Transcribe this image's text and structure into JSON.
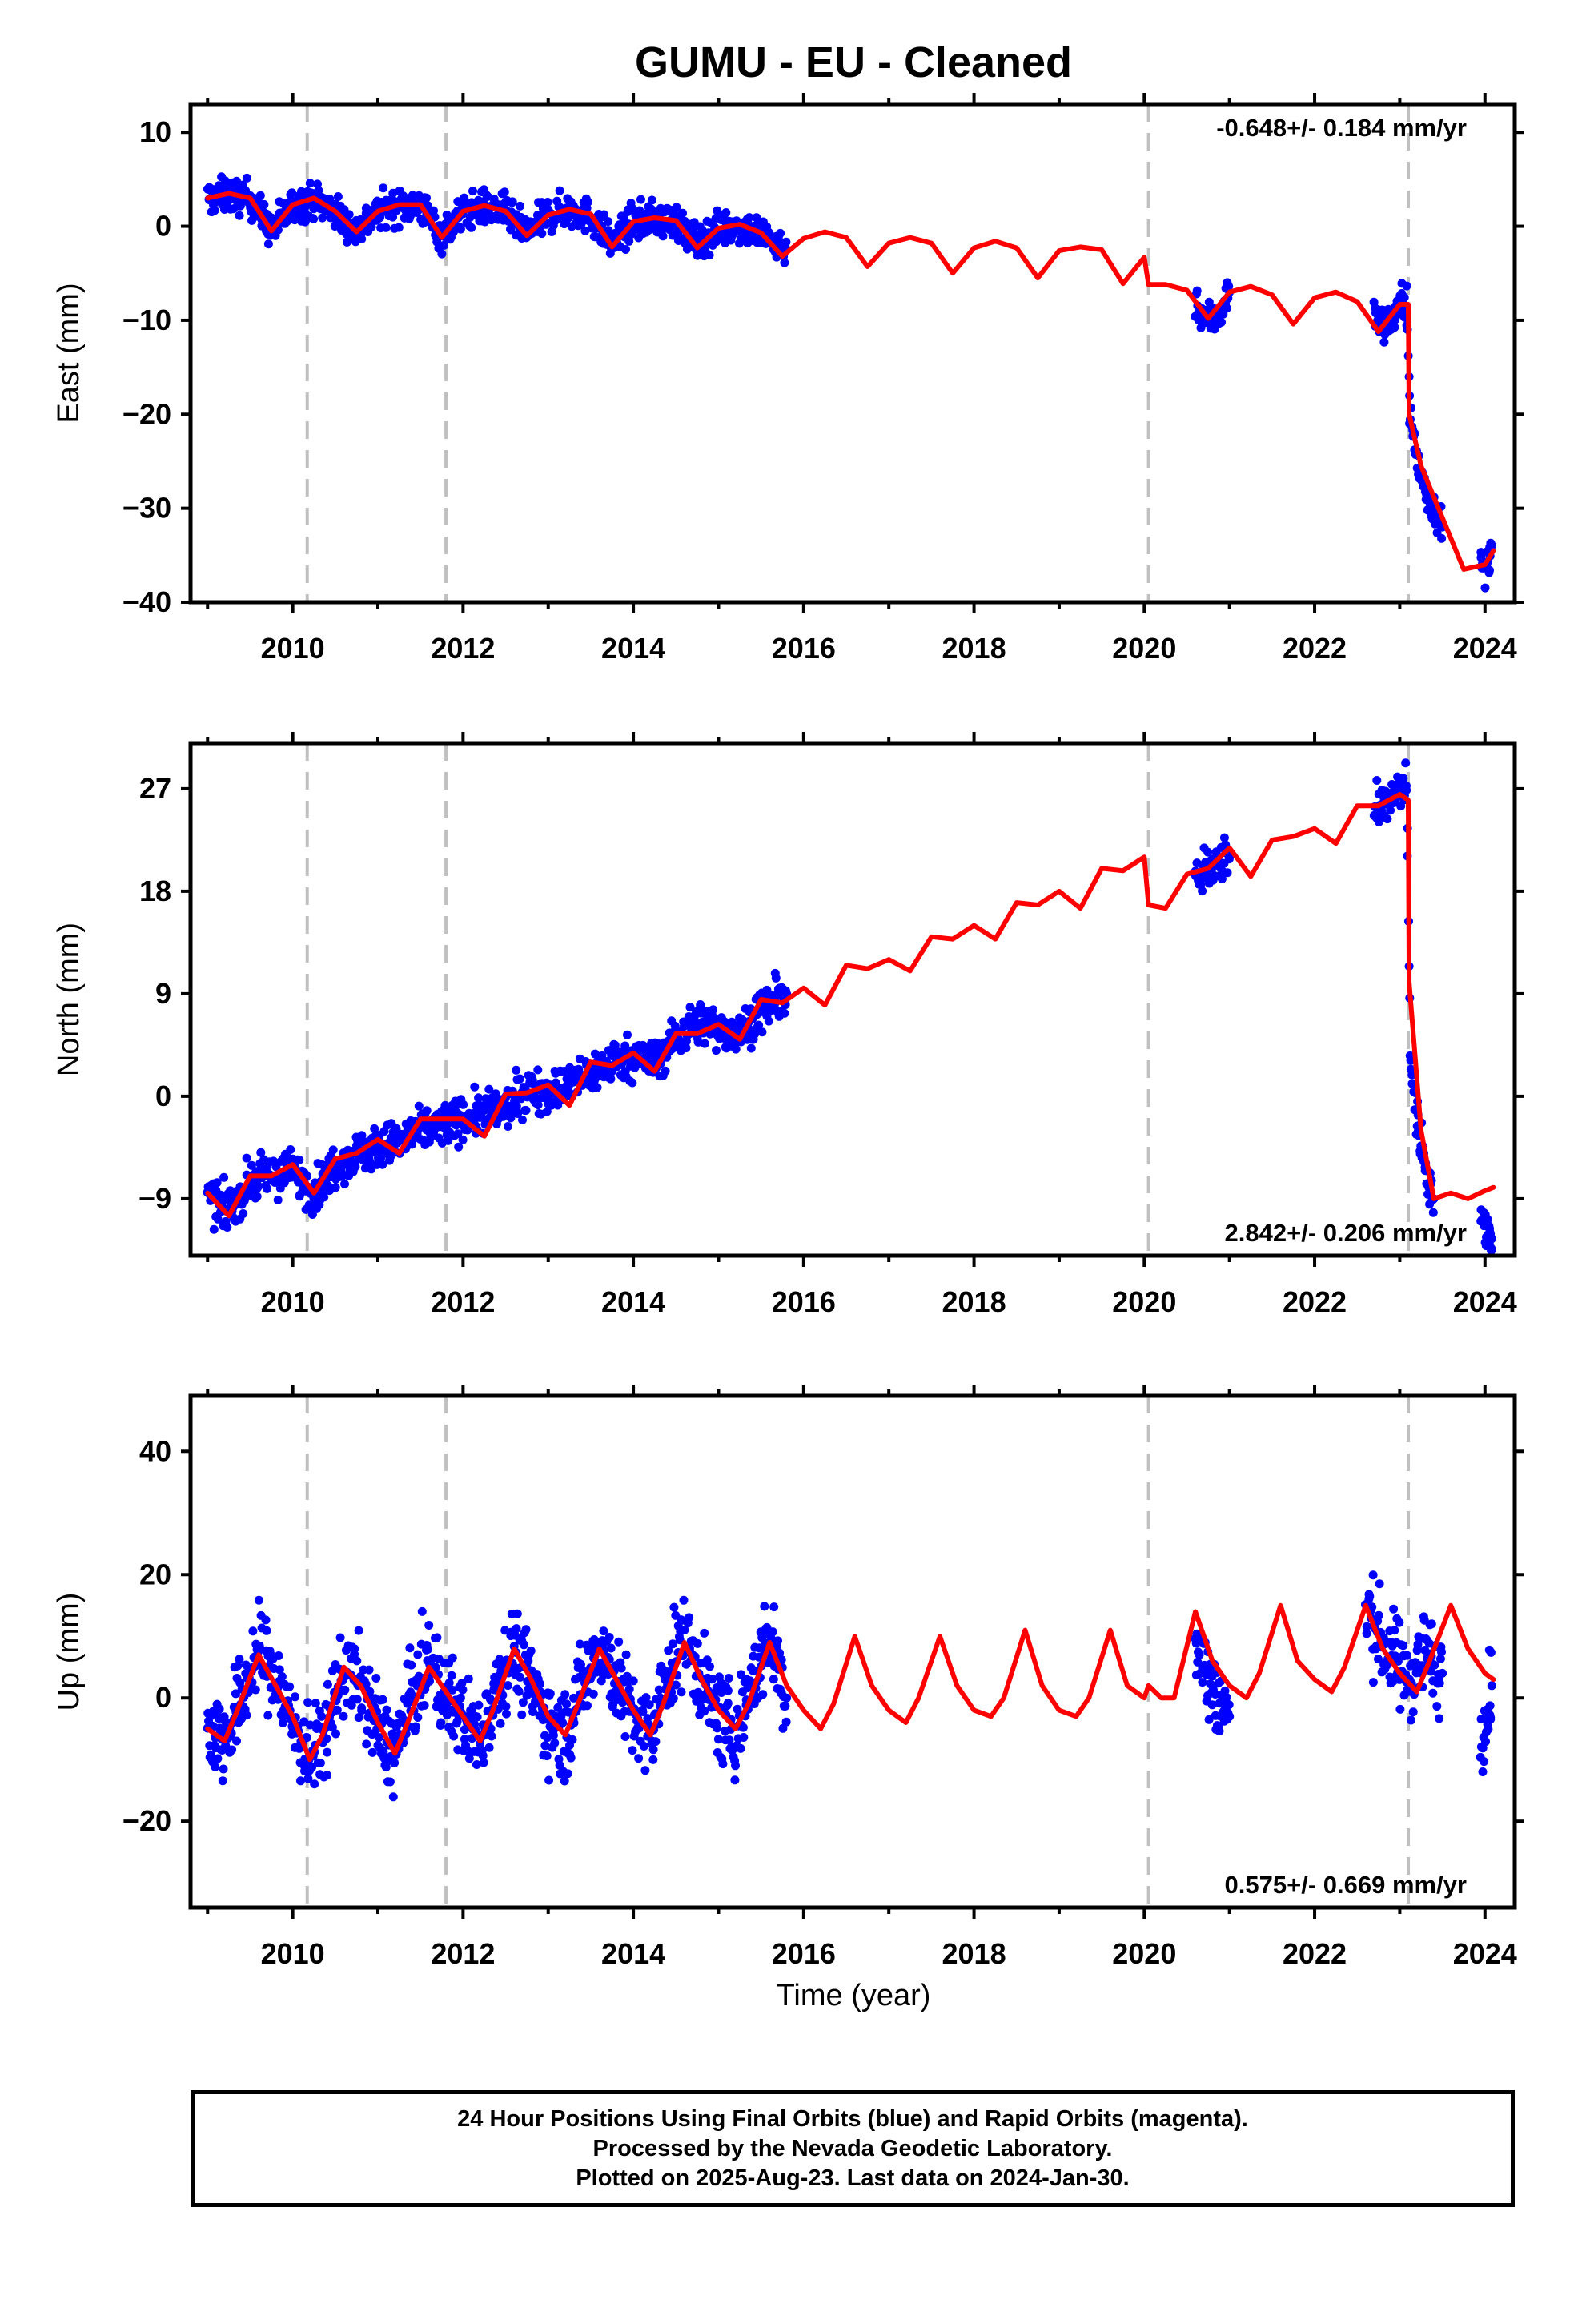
{
  "title": "GUMU  - EU - Cleaned",
  "xlabel": "Time (year)",
  "footer": {
    "line1": "24 Hour Positions Using Final Orbits (blue) and Rapid Orbits (magenta).",
    "line2": "Processed by the Nevada Geodetic Laboratory.",
    "line3": "Plotted on 2025-Aug-23. Last data on 2024-Jan-30."
  },
  "colors": {
    "data": "#0000ff",
    "model": "#ff0000",
    "breaks": "#c0c0c0"
  },
  "chart_data": [
    {
      "type": "scatter",
      "component": "east",
      "ylabel": "East (mm)",
      "rate_label": "-0.648+/- 0.184 mm/yr",
      "xlim": [
        2008.8,
        2024.35
      ],
      "ylim": [
        -40,
        13
      ],
      "yticks": [
        10,
        0,
        -10,
        -20,
        -30,
        -40
      ],
      "xticks": [
        2010,
        2012,
        2014,
        2016,
        2018,
        2020,
        2022,
        2024
      ],
      "breaks": [
        2010.17,
        2011.8,
        2020.05,
        2023.1
      ],
      "series": [
        {
          "role": "data",
          "segments": [
            {
              "x": [
                2009.0,
                2009.25,
                2009.5,
                2009.75,
                2010.0,
                2010.25,
                2010.5,
                2010.75,
                2011.0,
                2011.25,
                2011.5,
                2011.75,
                2012.0,
                2012.25,
                2012.5,
                2012.75,
                2013.0,
                2013.25,
                2013.5,
                2013.75,
                2014.0,
                2014.25,
                2014.5,
                2014.75,
                2015.0,
                2015.25,
                2015.5,
                2015.8
              ],
              "y": [
                3,
                3.3,
                3,
                -0.5,
                2.2,
                2.8,
                1.5,
                -0.5,
                1.5,
                2.2,
                2.2,
                -1,
                1.5,
                2,
                1.5,
                -0.8,
                1.2,
                1.8,
                1,
                -1.8,
                0.5,
                0.8,
                0.5,
                -1.8,
                -0.3,
                0,
                -0.8,
                -2.5
              ]
            },
            {
              "x": [
                2020.6,
                2020.7,
                2020.8,
                2020.9,
                2021.0
              ],
              "y": [
                -8,
                -9.5,
                -10,
                -9,
                -7
              ]
            },
            {
              "x": [
                2022.7,
                2022.8,
                2022.9,
                2023.0,
                2023.08,
                2023.12,
                2023.2,
                2023.3,
                2023.4,
                2023.5
              ],
              "y": [
                -9,
                -10.5,
                -10,
                -8.5,
                -7.5,
                -20,
                -25,
                -28,
                -30,
                -32
              ]
            },
            {
              "x": [
                2023.95,
                2024.0,
                2024.05,
                2024.08
              ],
              "y": [
                -36,
                -37,
                -35,
                -34
              ]
            }
          ]
        },
        {
          "role": "model",
          "x": [
            2009.0,
            2009.25,
            2009.5,
            2009.75,
            2010.0,
            2010.25,
            2010.5,
            2010.75,
            2011.0,
            2011.25,
            2011.5,
            2011.75,
            2012.0,
            2012.25,
            2012.5,
            2012.75,
            2013.0,
            2013.25,
            2013.5,
            2013.75,
            2014.0,
            2014.25,
            2014.5,
            2014.75,
            2015.0,
            2015.25,
            2015.5,
            2015.75,
            2016.0,
            2016.25,
            2016.5,
            2016.75,
            2017.0,
            2017.25,
            2017.5,
            2017.75,
            2018.0,
            2018.25,
            2018.5,
            2018.75,
            2019.0,
            2019.25,
            2019.5,
            2019.75,
            2020.0,
            2020.05,
            2020.25,
            2020.5,
            2020.75,
            2021.0,
            2021.25,
            2021.5,
            2021.75,
            2022.0,
            2022.25,
            2022.5,
            2022.75,
            2023.0,
            2023.1,
            2023.11,
            2023.25,
            2023.5,
            2023.75,
            2024.0,
            2024.1
          ],
          "y": [
            3,
            3.5,
            3,
            -0.5,
            2.3,
            3,
            1.6,
            -0.6,
            1.6,
            2.3,
            2.3,
            -1.2,
            1.6,
            2.2,
            1.6,
            -1.0,
            1.2,
            1.8,
            1.3,
            -2.2,
            0.5,
            0.9,
            0.6,
            -2.3,
            -0.2,
            0.2,
            -0.7,
            -3.2,
            -1.3,
            -0.6,
            -1.2,
            -4.3,
            -1.8,
            -1.2,
            -1.8,
            -5.0,
            -2.3,
            -1.6,
            -2.3,
            -5.5,
            -2.6,
            -2.2,
            -2.5,
            -6.1,
            -3.3,
            -6.2,
            -6.2,
            -6.8,
            -9.8,
            -7.0,
            -6.4,
            -7.3,
            -10.4,
            -7.6,
            -7.0,
            -8.0,
            -11.2,
            -8.3,
            -8.3,
            -20.0,
            -25.5,
            -31.0,
            -36.5,
            -36.0,
            -34.5
          ]
        }
      ]
    },
    {
      "type": "scatter",
      "component": "north",
      "ylabel": "North (mm)",
      "rate_label": "2.842+/- 0.206 mm/yr",
      "xlim": [
        2008.8,
        2024.35
      ],
      "ylim": [
        -14,
        31
      ],
      "yticks": [
        27,
        18,
        9,
        0,
        -9
      ],
      "xticks": [
        2010,
        2012,
        2014,
        2016,
        2018,
        2020,
        2022,
        2024
      ],
      "breaks": [
        2010.17,
        2011.8,
        2020.05,
        2023.1
      ],
      "series": [
        {
          "role": "data",
          "segments": [
            {
              "x": [
                2009.0,
                2009.25,
                2009.5,
                2009.75,
                2010.0,
                2010.25,
                2010.5,
                2010.75,
                2011.0,
                2011.25,
                2011.5,
                2011.75,
                2012.0,
                2012.25,
                2012.5,
                2012.75,
                2013.0,
                2013.25,
                2013.5,
                2013.75,
                2014.0,
                2014.25,
                2014.5,
                2014.75,
                2015.0,
                2015.25,
                2015.5,
                2015.8
              ],
              "y": [
                -9,
                -10,
                -7.5,
                -7,
                -6.5,
                -8.5,
                -6,
                -5,
                -4.5,
                -4,
                -3,
                -2.5,
                -2,
                -1.5,
                -1,
                0.5,
                0.5,
                1,
                2,
                3,
                3.5,
                3,
                5,
                6.5,
                6,
                5.5,
                7.5,
                9
              ]
            },
            {
              "x": [
                2020.6,
                2020.7,
                2020.8,
                2020.9,
                2021.0
              ],
              "y": [
                18.5,
                19.5,
                20.5,
                21,
                21
              ]
            },
            {
              "x": [
                2022.7,
                2022.8,
                2022.9,
                2023.0,
                2023.08,
                2023.12,
                2023.2,
                2023.3,
                2023.4
              ],
              "y": [
                25,
                25.5,
                26,
                27,
                27.5,
                4,
                -2,
                -6,
                -9
              ]
            },
            {
              "x": [
                2023.95,
                2024.0,
                2024.05,
                2024.08
              ],
              "y": [
                -11,
                -11.5,
                -12,
                -12.5
              ]
            }
          ]
        },
        {
          "role": "model",
          "x": [
            2009.0,
            2009.25,
            2009.5,
            2009.75,
            2010.0,
            2010.25,
            2010.5,
            2010.75,
            2011.0,
            2011.25,
            2011.5,
            2011.75,
            2012.0,
            2012.25,
            2012.5,
            2012.75,
            2013.0,
            2013.25,
            2013.5,
            2013.75,
            2014.0,
            2014.25,
            2014.5,
            2014.75,
            2015.0,
            2015.25,
            2015.5,
            2015.75,
            2016.0,
            2016.25,
            2016.5,
            2016.75,
            2017.0,
            2017.25,
            2017.5,
            2017.75,
            2018.0,
            2018.25,
            2018.5,
            2018.75,
            2019.0,
            2019.25,
            2019.5,
            2019.75,
            2020.0,
            2020.05,
            2020.25,
            2020.5,
            2020.75,
            2021.0,
            2021.25,
            2021.5,
            2021.75,
            2022.0,
            2022.25,
            2022.5,
            2022.75,
            2023.0,
            2023.1,
            2023.11,
            2023.25,
            2023.4,
            2023.6,
            2023.8,
            2024.0,
            2024.1
          ],
          "y": [
            -8.5,
            -10.5,
            -7,
            -7,
            -6,
            -8.5,
            -5.5,
            -5,
            -3.8,
            -5,
            -2,
            -2,
            -2,
            -3.5,
            0.2,
            0.3,
            1,
            -0.8,
            3,
            2.7,
            3.8,
            2.2,
            5.5,
            5.5,
            6.3,
            5,
            8.5,
            8.2,
            9.5,
            8,
            11.5,
            11.2,
            12,
            11,
            14,
            13.8,
            15,
            13.8,
            17,
            16.8,
            18,
            16.5,
            20,
            19.8,
            21,
            16.8,
            16.5,
            19.5,
            20,
            21.8,
            19.3,
            22.5,
            22.8,
            23.5,
            22.2,
            25.5,
            25.5,
            26.5,
            26,
            10,
            -3,
            -9,
            -8.5,
            -9,
            -8.3,
            -8
          ]
        }
      ]
    },
    {
      "type": "scatter",
      "component": "up",
      "ylabel": "Up (mm)",
      "rate_label": "0.575+/- 0.669 mm/yr",
      "xlim": [
        2008.8,
        2024.35
      ],
      "ylim": [
        -34,
        49
      ],
      "yticks": [
        40,
        20,
        0,
        -20
      ],
      "xticks": [
        2010,
        2012,
        2014,
        2016,
        2018,
        2020,
        2022,
        2024
      ],
      "breaks": [
        2010.17,
        2011.8,
        2020.05,
        2023.1
      ],
      "series": [
        {
          "role": "data",
          "segments": [
            {
              "x": [
                2009.0,
                2009.2,
                2009.4,
                2009.6,
                2009.8,
                2010.0,
                2010.2,
                2010.4,
                2010.6,
                2010.8,
                2011.0,
                2011.2,
                2011.4,
                2011.6,
                2011.8,
                2012.0,
                2012.2,
                2012.4,
                2012.6,
                2012.8,
                2013.0,
                2013.2,
                2013.4,
                2013.6,
                2013.8,
                2014.0,
                2014.2,
                2014.4,
                2014.6,
                2014.8,
                2015.0,
                2015.2,
                2015.4,
                2015.6,
                2015.8
              ],
              "y": [
                -5,
                -7,
                0,
                8,
                3,
                -4,
                -10,
                -5,
                5,
                2,
                -5,
                -9,
                0,
                6,
                0,
                -3,
                -7,
                3,
                8,
                2,
                -4,
                -6,
                2,
                9,
                3,
                -3,
                -7,
                4,
                10,
                3,
                -3,
                -6,
                3,
                10,
                0
              ]
            },
            {
              "x": [
                2020.6,
                2020.7,
                2020.8,
                2020.9,
                2021.0
              ],
              "y": [
                8,
                5,
                2,
                -1,
                -3
              ]
            },
            {
              "x": [
                2022.6,
                2022.7,
                2022.8,
                2022.9,
                2023.0,
                2023.1,
                2023.2,
                2023.3,
                2023.4,
                2023.5
              ],
              "y": [
                14,
                12,
                9,
                7,
                5,
                3,
                6,
                8,
                5,
                4
              ]
            },
            {
              "x": [
                2023.95,
                2024.0,
                2024.05,
                2024.08
              ],
              "y": [
                -5,
                -3,
                0,
                2
              ]
            }
          ]
        },
        {
          "role": "model",
          "x": [
            2009.0,
            2009.2,
            2009.35,
            2009.6,
            2009.8,
            2010.0,
            2010.2,
            2010.35,
            2010.6,
            2010.8,
            2011.0,
            2011.2,
            2011.35,
            2011.6,
            2011.8,
            2012.0,
            2012.2,
            2012.35,
            2012.6,
            2012.8,
            2013.0,
            2013.2,
            2013.35,
            2013.6,
            2013.8,
            2014.0,
            2014.2,
            2014.35,
            2014.6,
            2014.8,
            2015.0,
            2015.2,
            2015.35,
            2015.6,
            2015.8,
            2016.0,
            2016.2,
            2016.35,
            2016.6,
            2016.8,
            2017.0,
            2017.2,
            2017.35,
            2017.6,
            2017.8,
            2018.0,
            2018.2,
            2018.35,
            2018.6,
            2018.8,
            2019.0,
            2019.2,
            2019.35,
            2019.6,
            2019.8,
            2020.0,
            2020.05,
            2020.2,
            2020.35,
            2020.6,
            2020.8,
            2021.0,
            2021.2,
            2021.35,
            2021.6,
            2021.8,
            2022.0,
            2022.2,
            2022.35,
            2022.6,
            2022.8,
            2023.0,
            2023.2,
            2023.35,
            2023.6,
            2023.8,
            2024.0,
            2024.1
          ],
          "y": [
            -5,
            -7,
            -2,
            7,
            2,
            -3,
            -10,
            -6,
            5,
            2,
            -4,
            -9,
            -4,
            5,
            1,
            -3,
            -7,
            -2,
            8,
            3,
            -3,
            -6,
            -1,
            8,
            3,
            -2,
            -6,
            -1,
            9,
            3,
            -2,
            -5,
            -1,
            9,
            2,
            -2,
            -5,
            -1,
            10,
            2,
            -2,
            -4,
            0,
            10,
            2,
            -2,
            -3,
            0,
            11,
            2,
            -2,
            -3,
            0,
            11,
            2,
            0,
            2,
            0,
            0,
            14,
            6,
            2,
            0,
            4,
            15,
            6,
            3,
            1,
            5,
            15,
            8,
            4,
            1,
            6,
            15,
            8,
            4,
            3
          ]
        }
      ]
    }
  ]
}
